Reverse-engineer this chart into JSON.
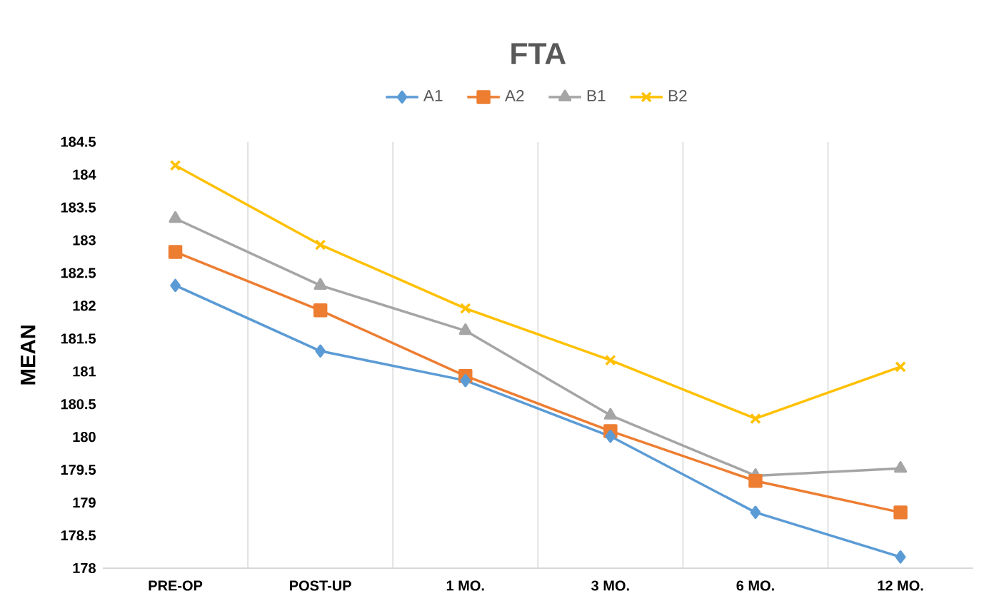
{
  "chart_data": {
    "type": "line",
    "title": "FTA",
    "ylabel": "MEAN",
    "categories": [
      "PRE-OP",
      "POST-UP",
      "1 MO.",
      "3 MO.",
      "6 MO.",
      "12 MO."
    ],
    "series": [
      {
        "name": "A1",
        "color": "#5b9bd5",
        "marker": "diamond",
        "values": [
          182.31,
          181.31,
          180.86,
          180.01,
          178.85,
          178.17
        ]
      },
      {
        "name": "A2",
        "color": "#ed7d31",
        "marker": "square",
        "values": [
          182.82,
          181.93,
          180.93,
          180.09,
          179.33,
          178.85
        ]
      },
      {
        "name": "B1",
        "color": "#a5a5a5",
        "marker": "triangle",
        "values": [
          183.33,
          182.31,
          181.62,
          180.33,
          179.41,
          179.52
        ]
      },
      {
        "name": "B2",
        "color": "#ffc000",
        "marker": "cross",
        "values": [
          184.14,
          182.93,
          181.96,
          181.17,
          180.28,
          181.07
        ]
      }
    ],
    "ylim": [
      178,
      184.5
    ],
    "yticks": [
      178,
      178.5,
      179,
      179.5,
      180,
      180.5,
      181,
      181.5,
      182,
      182.5,
      183,
      183.5,
      184,
      184.5
    ],
    "grid": "x",
    "legend": "top",
    "line_style": "solid"
  }
}
